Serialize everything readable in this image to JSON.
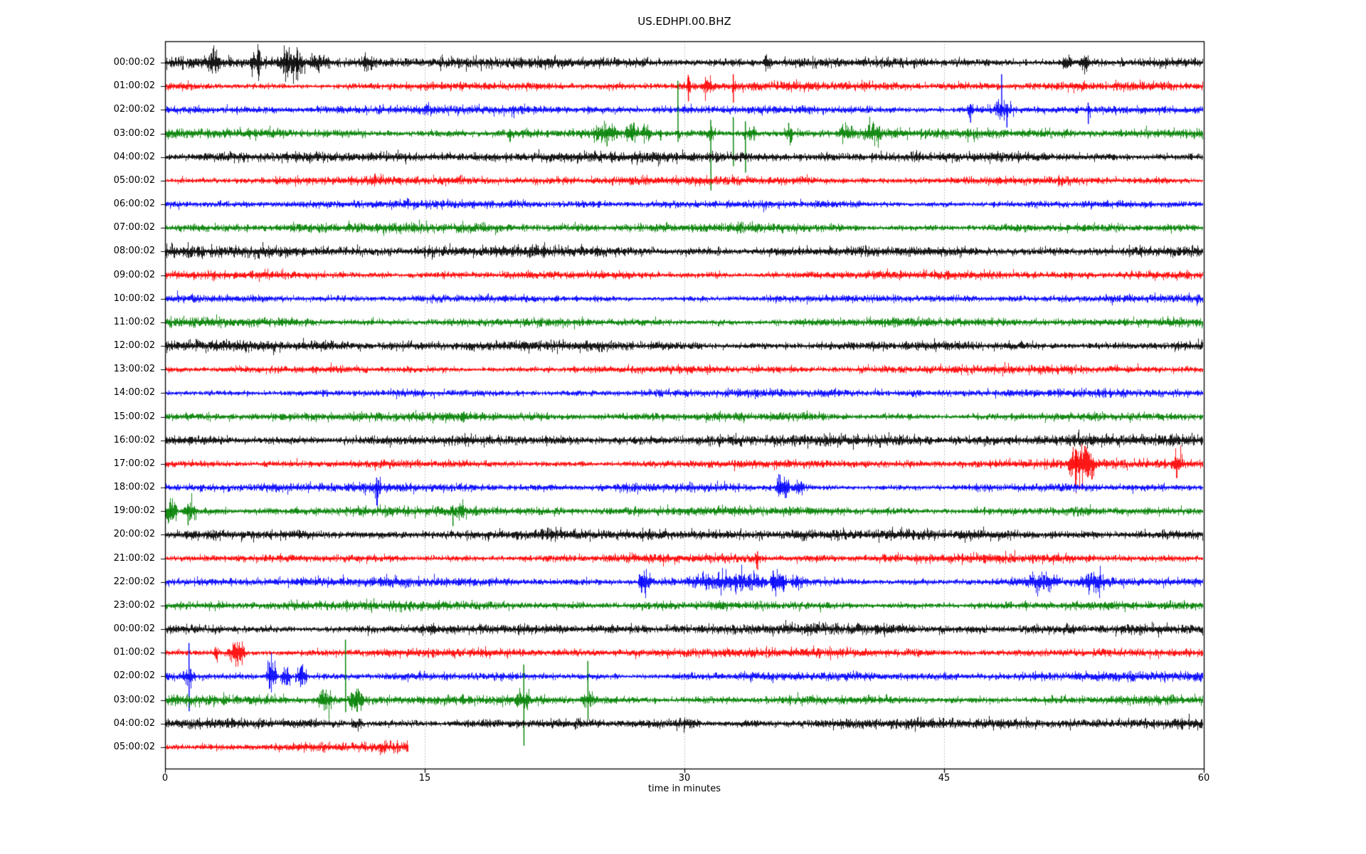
{
  "chart_data": {
    "type": "line",
    "subtype": "seismogram-helicorder-dayplot",
    "title": "US.EDHPI.00.BHZ",
    "xlabel": "time in minutes",
    "xlim": [
      0,
      60
    ],
    "x_ticks": [
      "0",
      "15",
      "30",
      "45",
      "60"
    ],
    "x_tick_values": [
      0,
      15,
      30,
      45,
      60
    ],
    "x_gridline_values": [
      15,
      30,
      45
    ],
    "grid_style": "dotted",
    "legend": "none",
    "colors": {
      "trace_cycle": [
        "#000000",
        "#ff0000",
        "#0000ff",
        "#008000"
      ],
      "grid": "#b0b0b0",
      "axis": "#000000",
      "background": "#ffffff"
    },
    "amp_units": "px",
    "rows": [
      {
        "label": "00:00:02",
        "color": "#000000",
        "base": 3.8,
        "end": 60,
        "bursts": [
          [
            2.4,
            3.2,
            8
          ],
          [
            4.9,
            5.6,
            9
          ],
          [
            6.6,
            8.1,
            10
          ],
          [
            8.1,
            9.6,
            5
          ],
          [
            11.3,
            12.0,
            5
          ],
          [
            34.5,
            35.1,
            5
          ],
          [
            51.8,
            52.4,
            8
          ],
          [
            52.8,
            53.4,
            8
          ]
        ],
        "spikes": [
          [
            7.0,
            14,
            14
          ],
          [
            7.6,
            13,
            13
          ]
        ]
      },
      {
        "label": "01:00:02",
        "color": "#ff0000",
        "base": 3.2,
        "end": 60,
        "bursts": [
          [
            30.1,
            30.4,
            4
          ],
          [
            31.0,
            31.6,
            6
          ],
          [
            32.7,
            33.0,
            3
          ]
        ],
        "spikes": [
          [
            30.2,
            16,
            21
          ],
          [
            32.8,
            17,
            23
          ]
        ]
      },
      {
        "label": "02:00:02",
        "color": "#0000ff",
        "base": 3.2,
        "end": 60,
        "bursts": [
          [
            46.0,
            49.5,
            2
          ],
          [
            46.3,
            46.7,
            5
          ],
          [
            47.8,
            48.9,
            5
          ],
          [
            53.2,
            53.5,
            4
          ]
        ],
        "spikes": [
          [
            46.5,
            6,
            18
          ],
          [
            48.3,
            50,
            10
          ],
          [
            48.6,
            8,
            25
          ],
          [
            53.3,
            10,
            20
          ]
        ]
      },
      {
        "label": "03:00:02",
        "color": "#008000",
        "base": 3.6,
        "end": 60,
        "bursts": [
          [
            19.8,
            20.1,
            4
          ],
          [
            24.6,
            26.2,
            6
          ],
          [
            26.5,
            27.3,
            8
          ],
          [
            27.5,
            28.0,
            5
          ],
          [
            31.3,
            31.8,
            5
          ],
          [
            33.3,
            34.2,
            4
          ],
          [
            35.7,
            36.3,
            5
          ],
          [
            38.8,
            39.8,
            6
          ],
          [
            40.3,
            41.5,
            6
          ]
        ],
        "spikes": [
          [
            19.9,
            6,
            12
          ],
          [
            25.5,
            6,
            18
          ],
          [
            26.9,
            12,
            6
          ],
          [
            28.6,
            5,
            10
          ],
          [
            29.6,
            74,
            12
          ],
          [
            31.5,
            19,
            80
          ],
          [
            32.8,
            23,
            46
          ],
          [
            33.5,
            17,
            55
          ],
          [
            34.0,
            10,
            10
          ],
          [
            36.0,
            15,
            5
          ]
        ]
      },
      {
        "label": "04:00:02",
        "color": "#000000",
        "base": 3.8,
        "end": 60,
        "bursts": [],
        "spikes": []
      },
      {
        "label": "05:00:02",
        "color": "#ff0000",
        "base": 3.2,
        "end": 60,
        "bursts": [],
        "spikes": []
      },
      {
        "label": "06:00:02",
        "color": "#0000ff",
        "base": 3.0,
        "end": 60,
        "bursts": [],
        "spikes": []
      },
      {
        "label": "07:00:02",
        "color": "#008000",
        "base": 3.4,
        "end": 60,
        "bursts": [],
        "spikes": []
      },
      {
        "label": "08:00:02",
        "color": "#000000",
        "base": 4.2,
        "end": 60,
        "bursts": [],
        "spikes": []
      },
      {
        "label": "09:00:02",
        "color": "#ff0000",
        "base": 3.2,
        "end": 60,
        "bursts": [],
        "spikes": []
      },
      {
        "label": "10:00:02",
        "color": "#0000ff",
        "base": 2.9,
        "end": 60,
        "bursts": [],
        "spikes": []
      },
      {
        "label": "11:00:02",
        "color": "#008000",
        "base": 3.4,
        "end": 60,
        "bursts": [],
        "spikes": []
      },
      {
        "label": "12:00:02",
        "color": "#000000",
        "base": 3.8,
        "end": 60,
        "bursts": [],
        "spikes": []
      },
      {
        "label": "13:00:02",
        "color": "#ff0000",
        "base": 3.0,
        "end": 60,
        "bursts": [],
        "spikes": []
      },
      {
        "label": "14:00:02",
        "color": "#0000ff",
        "base": 2.9,
        "end": 60,
        "bursts": [],
        "spikes": []
      },
      {
        "label": "15:00:02",
        "color": "#008000",
        "base": 3.3,
        "end": 60,
        "bursts": [],
        "spikes": []
      },
      {
        "label": "16:00:02",
        "color": "#000000",
        "base": 4.2,
        "end": 60,
        "bursts": [],
        "spikes": []
      },
      {
        "label": "17:00:02",
        "color": "#ff0000",
        "base": 3.2,
        "end": 60,
        "bursts": [
          [
            52.1,
            53.7,
            16
          ],
          [
            58.1,
            58.8,
            9
          ]
        ],
        "spikes": [
          [
            52.6,
            20,
            22
          ]
        ]
      },
      {
        "label": "18:00:02",
        "color": "#0000ff",
        "base": 3.2,
        "end": 60,
        "bursts": [
          [
            12.0,
            12.5,
            6
          ],
          [
            35.2,
            36.1,
            8
          ],
          [
            36.2,
            36.9,
            5
          ]
        ],
        "spikes": [
          [
            12.2,
            14,
            25
          ],
          [
            35.5,
            18,
            10
          ],
          [
            35.8,
            8,
            15
          ]
        ]
      },
      {
        "label": "19:00:02",
        "color": "#008000",
        "base": 3.4,
        "end": 60,
        "bursts": [
          [
            0.0,
            0.7,
            9
          ],
          [
            1.0,
            1.8,
            9
          ],
          [
            16.9,
            17.3,
            5
          ]
        ],
        "spikes": [
          [
            0.3,
            12,
            12
          ],
          [
            1.3,
            10,
            20
          ],
          [
            16.6,
            8,
            21
          ]
        ]
      },
      {
        "label": "20:00:02",
        "color": "#000000",
        "base": 3.8,
        "end": 60,
        "bursts": [],
        "spikes": []
      },
      {
        "label": "21:00:02",
        "color": "#ff0000",
        "base": 3.2,
        "end": 60,
        "bursts": [
          [
            34.0,
            34.4,
            3
          ]
        ],
        "spikes": [
          [
            34.2,
            10,
            16
          ]
        ]
      },
      {
        "label": "22:00:02",
        "color": "#0000ff",
        "base": 3.4,
        "end": 60,
        "bursts": [
          [
            27.3,
            28.1,
            10
          ],
          [
            30.1,
            34.8,
            6
          ],
          [
            34.9,
            35.9,
            10
          ],
          [
            36.0,
            37.2,
            4
          ],
          [
            49.7,
            51.6,
            6
          ],
          [
            52.9,
            54.3,
            6
          ]
        ],
        "spikes": [
          [
            27.5,
            8,
            15
          ],
          [
            35.1,
            16,
            8
          ],
          [
            35.7,
            8,
            14
          ]
        ]
      },
      {
        "label": "23:00:02",
        "color": "#008000",
        "base": 3.4,
        "end": 60,
        "bursts": [],
        "spikes": []
      },
      {
        "label": "00:00:02",
        "color": "#000000",
        "base": 3.8,
        "end": 60,
        "bursts": [],
        "spikes": []
      },
      {
        "label": "01:00:02",
        "color": "#ff0000",
        "base": 3.2,
        "end": 60,
        "bursts": [
          [
            2.8,
            3.1,
            4
          ],
          [
            3.6,
            4.7,
            10
          ]
        ],
        "spikes": [
          [
            2.9,
            8,
            8
          ]
        ]
      },
      {
        "label": "02:00:02",
        "color": "#0000ff",
        "base": 3.2,
        "end": 60,
        "bursts": [
          [
            1.0,
            1.8,
            5
          ],
          [
            5.8,
            6.5,
            12
          ],
          [
            6.6,
            7.3,
            7
          ],
          [
            7.5,
            8.2,
            9
          ]
        ],
        "spikes": [
          [
            1.36,
            47,
            49
          ],
          [
            6.0,
            20,
            15
          ],
          [
            7.8,
            12,
            12
          ]
        ]
      },
      {
        "label": "03:00:02",
        "color": "#008000",
        "base": 3.6,
        "end": 60,
        "bursts": [
          [
            8.8,
            9.7,
            9
          ],
          [
            10.6,
            11.5,
            9
          ],
          [
            20.2,
            21.1,
            6
          ],
          [
            24.0,
            24.8,
            6
          ]
        ],
        "spikes": [
          [
            9.1,
            15,
            6
          ],
          [
            10.4,
            85,
            17
          ],
          [
            11.0,
            12,
            8
          ],
          [
            20.7,
            50,
            64
          ],
          [
            24.4,
            55,
            27
          ]
        ]
      },
      {
        "label": "04:00:02",
        "color": "#000000",
        "base": 3.8,
        "end": 60,
        "bursts": [
          [
            10.7,
            11.5,
            4
          ],
          [
            29.4,
            31.0,
            3
          ]
        ],
        "spikes": []
      },
      {
        "label": "05:00:02",
        "color": "#ff0000",
        "base": 3.6,
        "end": 14.0,
        "bursts": [],
        "spikes": []
      }
    ]
  }
}
